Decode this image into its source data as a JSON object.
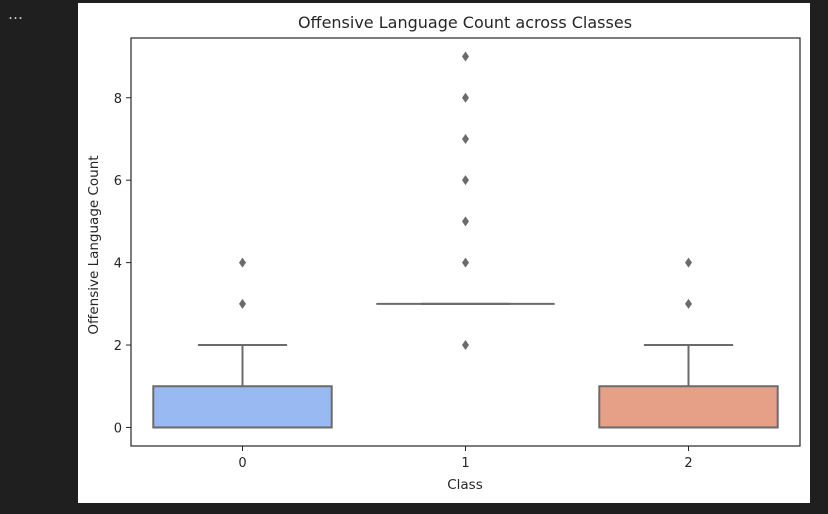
{
  "cell": {
    "menu_label": "…"
  },
  "chart_data": {
    "type": "box",
    "title": "Offensive Language Count across Classes",
    "xlabel": "Class",
    "ylabel": "Offensive Language Count",
    "ylim": [
      -0.45,
      9.45
    ],
    "yticks": [
      0,
      2,
      4,
      6,
      8
    ],
    "grid": false,
    "legend": "none",
    "categories": [
      "0",
      "1",
      "2"
    ],
    "boxes": [
      {
        "category": "0",
        "q1": 0,
        "median": 0,
        "q3": 1,
        "whisker_low": 0,
        "whisker_high": 2,
        "outliers": [
          3,
          4
        ],
        "color": "#99b9f2"
      },
      {
        "category": "1",
        "q1": 3,
        "median": 3,
        "q3": 3,
        "whisker_low": 3,
        "whisker_high": 3,
        "outliers": [
          2,
          4,
          5,
          6,
          7,
          8,
          9
        ],
        "color": "#dcdddd"
      },
      {
        "category": "2",
        "q1": 0,
        "median": 0,
        "q3": 1,
        "whisker_low": 0,
        "whisker_high": 2,
        "outliers": [
          3,
          4
        ],
        "color": "#e6a088"
      }
    ],
    "line_color": "#6b6b6b",
    "outlier_color": "#6b6b6b"
  }
}
